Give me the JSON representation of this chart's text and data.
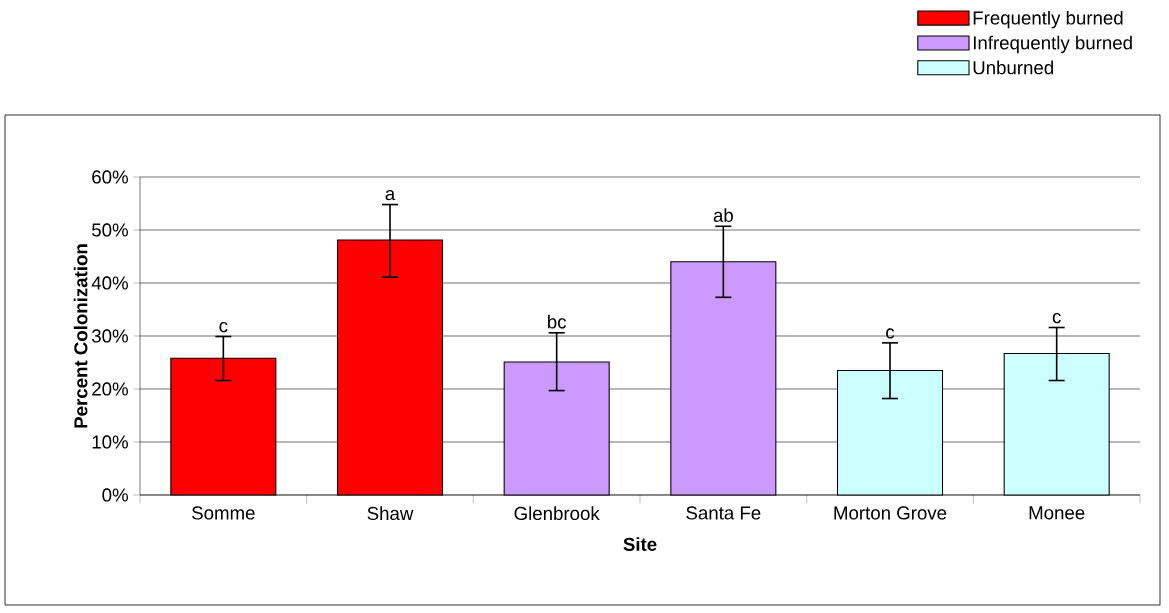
{
  "chart_data": {
    "type": "bar",
    "xlabel": "Site",
    "ylabel": "Percent Colonization",
    "categories": [
      "Somme",
      "Shaw",
      "Glenbrook",
      "Santa Fe",
      "Morton Grove",
      "Monee"
    ],
    "series": [
      {
        "name": "Frequently burned",
        "color": "#ff0000",
        "values": [
          25.8,
          48.1,
          null,
          null,
          null,
          null
        ],
        "errors": [
          [
            21.6,
            29.9
          ],
          [
            41.1,
            54.8
          ],
          null,
          null,
          null,
          null
        ]
      },
      {
        "name": "Infrequently burned",
        "color": "#cc99ff",
        "values": [
          null,
          null,
          25.1,
          44.0,
          null,
          null
        ],
        "errors": [
          null,
          null,
          [
            19.7,
            30.6
          ],
          [
            37.3,
            50.7
          ],
          null,
          null
        ]
      },
      {
        "name": "Unburned",
        "color": "#ccffff",
        "values": [
          null,
          null,
          null,
          null,
          23.5,
          26.7
        ],
        "errors": [
          null,
          null,
          null,
          null,
          [
            18.2,
            28.7
          ],
          [
            21.6,
            31.6
          ]
        ]
      }
    ],
    "ylim": [
      0,
      60
    ],
    "yticks": [
      {
        "value": 0,
        "label": "0%"
      },
      {
        "value": 10,
        "label": "10%"
      },
      {
        "value": 20,
        "label": "20%"
      },
      {
        "value": 30,
        "label": "30%"
      },
      {
        "value": 40,
        "label": "40%"
      },
      {
        "value": 50,
        "label": "50%"
      },
      {
        "value": 60,
        "label": "60%"
      }
    ],
    "grid": "y",
    "legend": "top right",
    "annotations": [
      {
        "text": "c",
        "x": "Somme",
        "y": 29.9
      },
      {
        "text": "a",
        "x": "Shaw",
        "y": 54.8
      },
      {
        "text": "bc",
        "x": "Glenbrook",
        "y": 30.6
      },
      {
        "text": "ab",
        "x": "Santa Fe",
        "y": 50.7
      },
      {
        "text": "c",
        "x": "Morton Grove",
        "y": 28.7
      },
      {
        "text": "c",
        "x": "Monee",
        "y": 31.6
      }
    ]
  }
}
